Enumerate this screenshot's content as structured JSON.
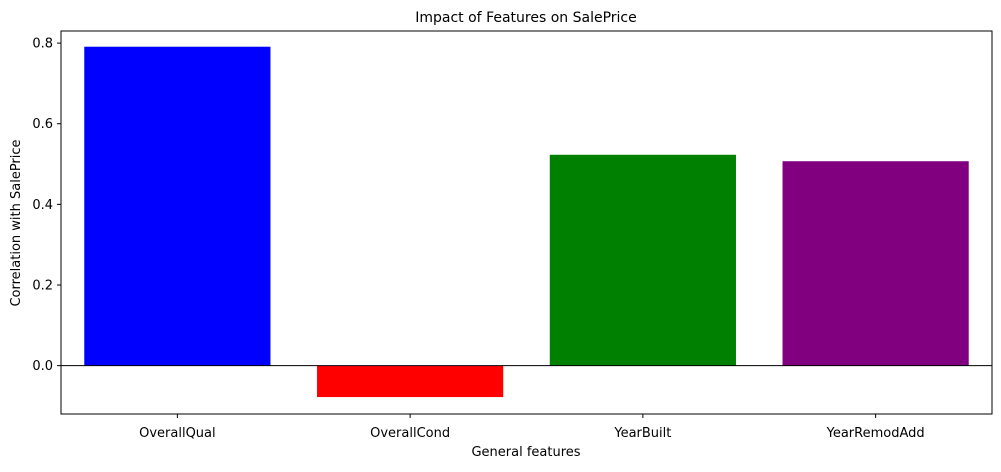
{
  "chart_data": {
    "type": "bar",
    "title": "Impact of Features on SalePrice",
    "xlabel": "General features",
    "ylabel": "Correlation with SalePrice",
    "categories": [
      "OverallQual",
      "OverallCond",
      "YearBuilt",
      "YearRemodAdd"
    ],
    "values": [
      0.791,
      -0.078,
      0.523,
      0.507
    ],
    "colors": [
      "#0000ff",
      "#ff0000",
      "#008000",
      "#800080"
    ],
    "ylim": [
      -0.12,
      0.83
    ],
    "yticks": [
      0.0,
      0.2,
      0.4,
      0.6,
      0.8
    ],
    "ytick_labels": [
      "0.0",
      "0.2",
      "0.4",
      "0.6",
      "0.8"
    ],
    "zero_line": true,
    "grid": false,
    "legend": "none"
  }
}
